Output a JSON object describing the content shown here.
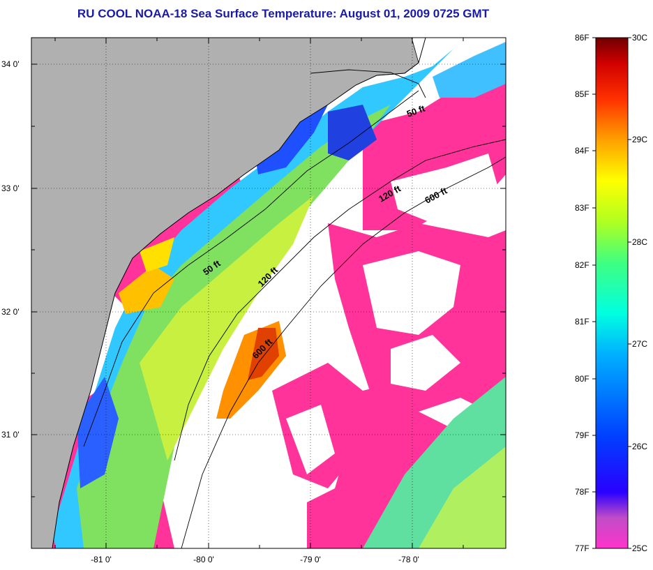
{
  "title": "RU COOL  NOAA-18  Sea Surface Temperature:  August 01, 2009 0725 GMT",
  "axes": {
    "lon_labels": [
      "-81 0'",
      "-80 0'",
      "-79 0'",
      "-78 0'"
    ],
    "lat_labels": [
      "34 0'",
      "33 0'",
      "32 0'",
      "31 0'"
    ]
  },
  "contours": {
    "c50a": "50 ft",
    "c50b": "50 ft",
    "c120a": "120 ft",
    "c120b": "120 ft",
    "c600a": "600 ft",
    "c600b": "600 ft"
  },
  "colorbar": {
    "f_labels": [
      "86F",
      "85F",
      "84F",
      "83F",
      "82F",
      "81F",
      "80F",
      "79F",
      "78F",
      "77F"
    ],
    "c_labels": [
      "30C",
      "29C",
      "28C",
      "27C",
      "26C",
      "25C"
    ]
  },
  "colors": {
    "title": "#1a1aa8",
    "land": "#b0b0b0",
    "cloud": "#ffffff",
    "cold": "#ff3399"
  }
}
